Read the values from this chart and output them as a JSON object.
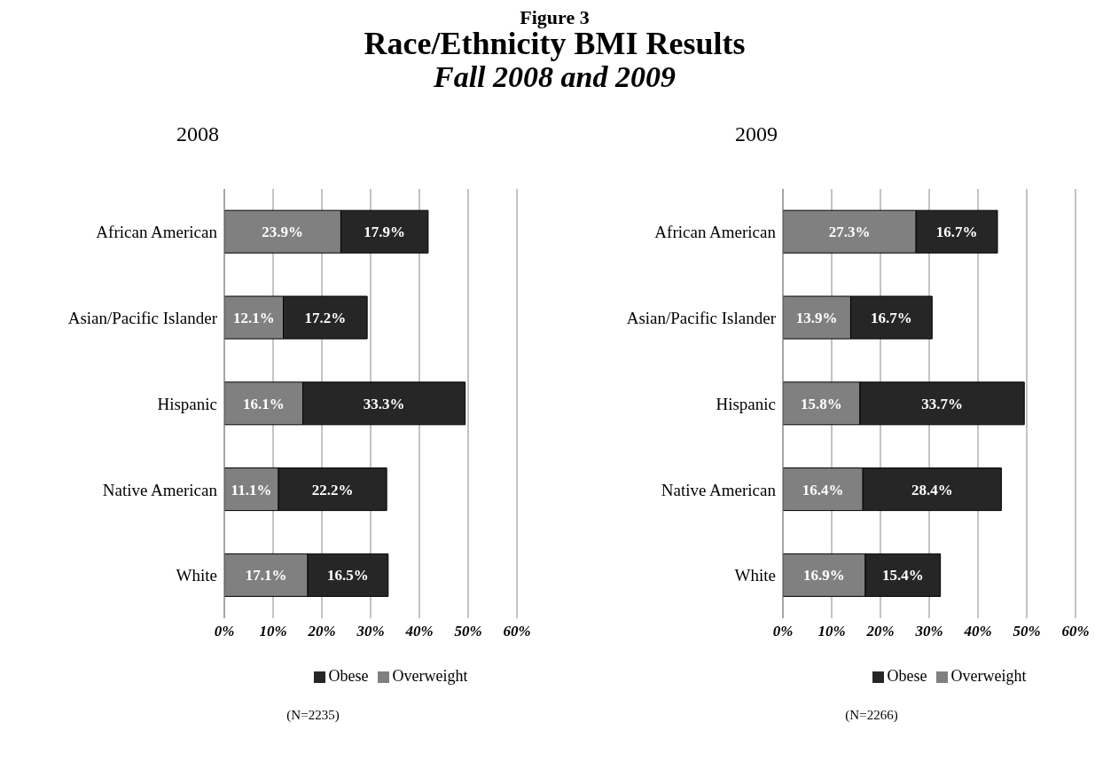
{
  "chart_data": [
    {
      "type": "bar",
      "orientation": "horizontal",
      "stacked": true,
      "title": "2008",
      "annotations": [
        "Figure 3",
        "Race/Ethnicity BMI Results",
        "Fall 2008 and 2009",
        "(N=2235)"
      ],
      "categories": [
        "African American",
        "Asian/Pacific Islander",
        "Hispanic",
        "Native American",
        "White"
      ],
      "series": [
        {
          "name": "Overweight",
          "color": "#808080",
          "values": [
            23.9,
            12.1,
            16.1,
            11.1,
            17.1
          ],
          "value_labels": [
            "23.9%",
            "12.1%",
            "16.1%",
            "11.1%",
            "17.1%"
          ]
        },
        {
          "name": "Obese",
          "color": "#262626",
          "values": [
            17.9,
            17.2,
            33.3,
            22.2,
            16.5
          ],
          "value_labels": [
            "17.9%",
            "17.2%",
            "33.3%",
            "22.2%",
            "16.5%"
          ]
        }
      ],
      "xlim": [
        0,
        60
      ],
      "xticks": [
        {
          "value": 0,
          "label": "0%"
        },
        {
          "value": 10,
          "label": "10%"
        },
        {
          "value": 20,
          "label": "20%"
        },
        {
          "value": 30,
          "label": "30%"
        },
        {
          "value": 40,
          "label": "40%"
        },
        {
          "value": 50,
          "label": "50%"
        },
        {
          "value": 60,
          "label": "60%"
        }
      ],
      "grid": "x",
      "legend": "bottom"
    },
    {
      "type": "bar",
      "orientation": "horizontal",
      "stacked": true,
      "title": "2009",
      "annotations": [
        "(N=2266)"
      ],
      "categories": [
        "African American",
        "Asian/Pacific Islander",
        "Hispanic",
        "Native American",
        "White"
      ],
      "series": [
        {
          "name": "Overweight",
          "color": "#808080",
          "values": [
            27.3,
            13.9,
            15.8,
            16.4,
            16.9
          ],
          "value_labels": [
            "27.3%",
            "13.9%",
            "15.8%",
            "16.4%",
            "16.9%"
          ]
        },
        {
          "name": "Obese",
          "color": "#262626",
          "values": [
            16.7,
            16.7,
            33.7,
            28.4,
            15.4
          ],
          "value_labels": [
            "16.7%",
            "16.7%",
            "33.7%",
            "28.4%",
            "15.4%"
          ]
        }
      ],
      "xlim": [
        0,
        60
      ],
      "xticks": [
        {
          "value": 0,
          "label": "0%"
        },
        {
          "value": 10,
          "label": "10%"
        },
        {
          "value": 20,
          "label": "20%"
        },
        {
          "value": 30,
          "label": "30%"
        },
        {
          "value": 40,
          "label": "40%"
        },
        {
          "value": 50,
          "label": "50%"
        },
        {
          "value": 60,
          "label": "60%"
        }
      ],
      "grid": "x",
      "legend": "bottom"
    }
  ]
}
